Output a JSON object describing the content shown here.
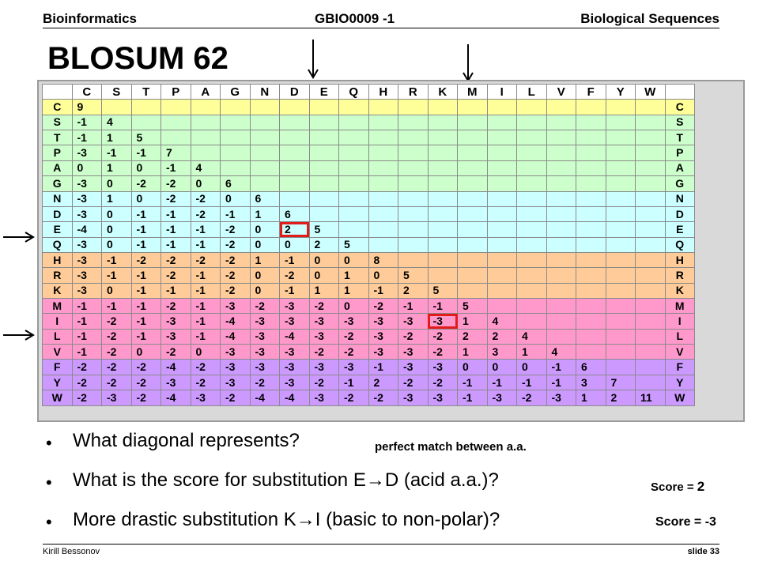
{
  "header": {
    "left": "Bioinformatics",
    "center": "GBIO0009 -1",
    "right": "Biological Sequences"
  },
  "title": "BLOSUM 62",
  "matrix": {
    "letters": [
      "C",
      "S",
      "T",
      "P",
      "A",
      "G",
      "N",
      "D",
      "E",
      "Q",
      "H",
      "R",
      "K",
      "M",
      "I",
      "L",
      "V",
      "F",
      "Y",
      "W"
    ],
    "groups": [
      {
        "rows": [
          "C"
        ],
        "color": "#ffff99"
      },
      {
        "rows": [
          "S",
          "T",
          "P",
          "A",
          "G"
        ],
        "color": "#ccffcc"
      },
      {
        "rows": [
          "N",
          "D",
          "E",
          "Q"
        ],
        "color": "#ccffff"
      },
      {
        "rows": [
          "H",
          "R",
          "K"
        ],
        "color": "#ffcc99"
      },
      {
        "rows": [
          "M",
          "I",
          "L",
          "V"
        ],
        "color": "#ff99cc"
      },
      {
        "rows": [
          "F",
          "Y",
          "W"
        ],
        "color": "#cc99ff"
      }
    ],
    "rows": [
      [
        "9"
      ],
      [
        "-1",
        "4"
      ],
      [
        "-1",
        "1",
        "5"
      ],
      [
        "-3",
        "-1",
        "-1",
        "7"
      ],
      [
        "0",
        "1",
        "0",
        "-1",
        "4"
      ],
      [
        "-3",
        "0",
        "-2",
        "-2",
        "0",
        "6"
      ],
      [
        "-3",
        "1",
        "0",
        "-2",
        "-2",
        "0",
        "6"
      ],
      [
        "-3",
        "0",
        "-1",
        "-1",
        "-2",
        "-1",
        "1",
        "6"
      ],
      [
        "-4",
        "0",
        "-1",
        "-1",
        "-1",
        "-2",
        "0",
        "2",
        "5"
      ],
      [
        "-3",
        "0",
        "-1",
        "-1",
        "-1",
        "-2",
        "0",
        "0",
        "2",
        "5"
      ],
      [
        "-3",
        "-1",
        "-2",
        "-2",
        "-2",
        "-2",
        "1",
        "-1",
        "0",
        "0",
        "8"
      ],
      [
        "-3",
        "-1",
        "-1",
        "-2",
        "-1",
        "-2",
        "0",
        "-2",
        "0",
        "1",
        "0",
        "5"
      ],
      [
        "-3",
        "0",
        "-1",
        "-1",
        "-1",
        "-2",
        "0",
        "-1",
        "1",
        "1",
        "-1",
        "2",
        "5"
      ],
      [
        "-1",
        "-1",
        "-1",
        "-2",
        "-1",
        "-3",
        "-2",
        "-3",
        "-2",
        "0",
        "-2",
        "-1",
        "-1",
        "5"
      ],
      [
        "-1",
        "-2",
        "-1",
        "-3",
        "-1",
        "-4",
        "-3",
        "-3",
        "-3",
        "-3",
        "-3",
        "-3",
        "-3",
        "1",
        "4"
      ],
      [
        "-1",
        "-2",
        "-1",
        "-3",
        "-1",
        "-4",
        "-3",
        "-4",
        "-3",
        "-2",
        "-3",
        "-2",
        "-2",
        "2",
        "2",
        "4"
      ],
      [
        "-1",
        "-2",
        "0",
        "-2",
        "0",
        "-3",
        "-3",
        "-3",
        "-2",
        "-2",
        "-3",
        "-3",
        "-2",
        "1",
        "3",
        "1",
        "4"
      ],
      [
        "-2",
        "-2",
        "-2",
        "-4",
        "-2",
        "-3",
        "-3",
        "-3",
        "-3",
        "-3",
        "-1",
        "-3",
        "-3",
        "0",
        "0",
        "0",
        "-1",
        "6"
      ],
      [
        "-2",
        "-2",
        "-2",
        "-3",
        "-2",
        "-3",
        "-2",
        "-3",
        "-2",
        "-1",
        "2",
        "-2",
        "-2",
        "-1",
        "-1",
        "-1",
        "-1",
        "3",
        "7"
      ],
      [
        "-2",
        "-3",
        "-2",
        "-4",
        "-3",
        "-2",
        "-4",
        "-4",
        "-3",
        "-2",
        "-2",
        "-3",
        "-3",
        "-1",
        "-3",
        "-2",
        "-3",
        "1",
        "2",
        "11"
      ]
    ],
    "highlights": [
      {
        "row": 8,
        "col": 7
      },
      {
        "row": 14,
        "col": 12
      }
    ]
  },
  "bullets": [
    {
      "text": "What diagonal represents?",
      "answer": "perfect match between a.a."
    },
    {
      "text_before": "What is the score for substitution E",
      "arrow": "→",
      "text_after": "D (acid a.a.)?",
      "answer_label": "Score =",
      "answer_value": "2"
    },
    {
      "text_before": "More drastic substitution K",
      "arrow": "→",
      "text_after": "I (basic to non-polar)?",
      "answer": "Score = -3"
    }
  ],
  "footer": {
    "left": "Kirill Bessonov",
    "right": "slide 33"
  },
  "colors": {
    "highlight": "#e21b1b"
  }
}
